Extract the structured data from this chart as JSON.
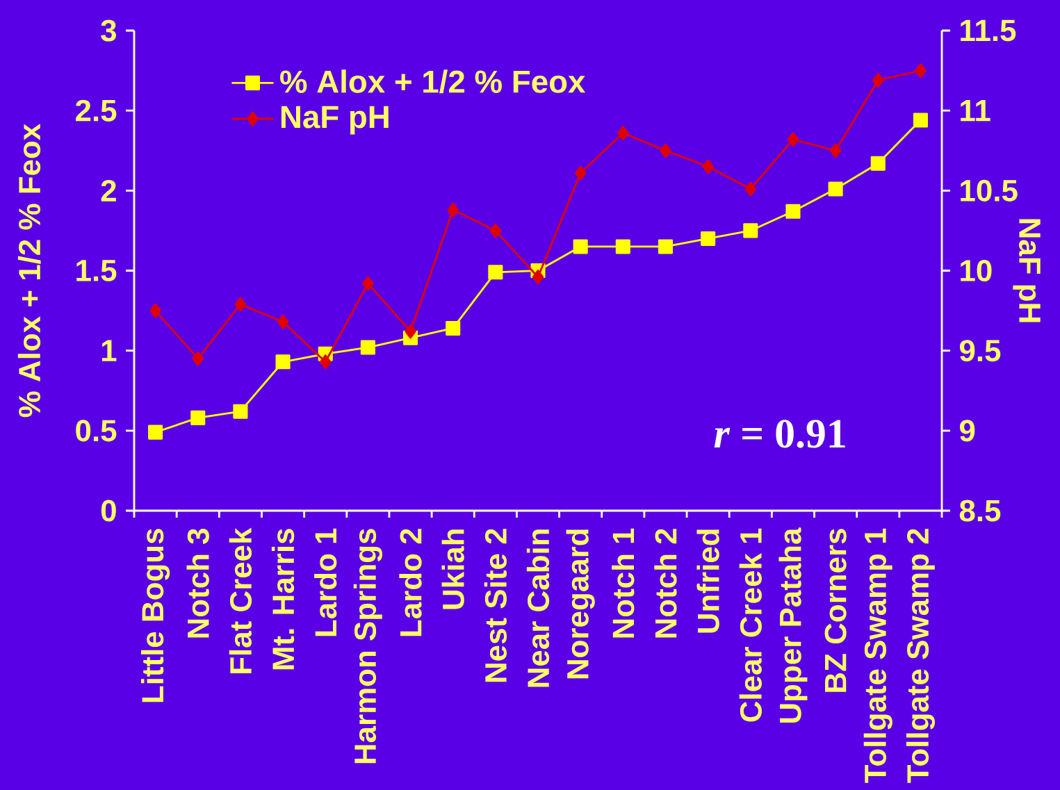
{
  "chart_data": {
    "type": "line",
    "ylabel": "% Alox + 1/2 % Feox",
    "y2label": "NaF pH",
    "categories": [
      "Little Bogus",
      "Notch 3",
      "Flat Creek",
      "Mt. Harris",
      "Lardo 1",
      "Harmon Springs",
      "Lardo 2",
      "Ukiah",
      "Nest Site 2",
      "Near Cabin",
      "Noregaard",
      "Notch 1",
      "Notch 2",
      "Unfried",
      "Clear Creek 1",
      "Upper Pataha",
      "BZ Corners",
      "Tollgate Swamp 1",
      "Tollgate Swamp 2"
    ],
    "series": [
      {
        "name": "% Alox + 1/2 % Feox",
        "color": "#ffff00",
        "marker": "square",
        "values": [
          0.49,
          0.58,
          0.62,
          0.93,
          0.98,
          1.02,
          1.08,
          1.14,
          1.49,
          1.5,
          1.65,
          1.65,
          1.65,
          1.7,
          1.75,
          1.87,
          2.01,
          2.17,
          2.44
        ]
      },
      {
        "name": "NaF pH",
        "color": "#e00000",
        "marker": "diamond",
        "axis": "y2",
        "values": [
          9.75,
          9.45,
          9.79,
          9.68,
          9.43,
          9.92,
          9.62,
          10.38,
          10.25,
          9.96,
          10.61,
          10.86,
          10.75,
          10.65,
          10.51,
          10.82,
          10.75,
          11.19,
          11.25
        ]
      }
    ],
    "ylim": [
      0,
      3
    ],
    "yticks": [
      0,
      0.5,
      1,
      1.5,
      2,
      2.5,
      3
    ],
    "y2lim": [
      8.5,
      11.5
    ],
    "y2ticks": [
      8.5,
      9,
      9.5,
      10,
      10.5,
      11,
      11.5
    ],
    "grid": false,
    "legend": "top left",
    "annotations": [
      "*r* = 0.91"
    ]
  }
}
